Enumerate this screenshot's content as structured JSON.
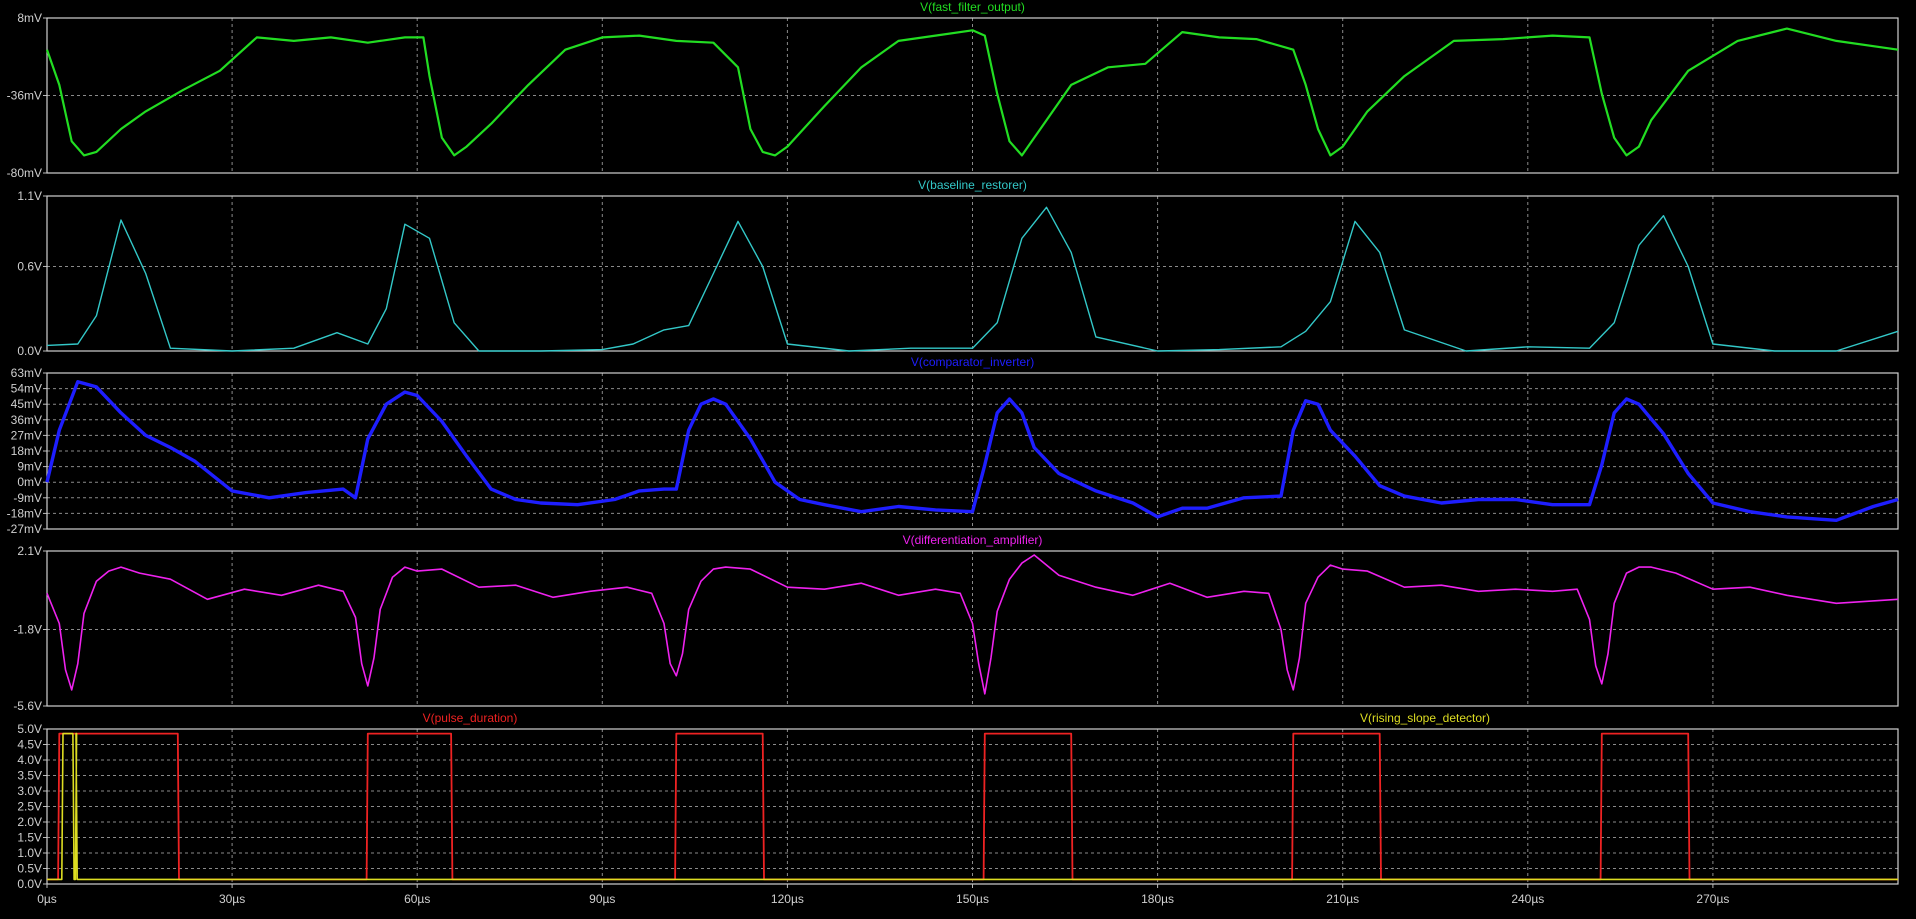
{
  "chart_data": {
    "type": "line",
    "x_axis": {
      "range": [
        0,
        300
      ],
      "ticks": [
        0,
        30,
        60,
        90,
        120,
        150,
        180,
        210,
        240,
        270
      ],
      "tick_labels": [
        "0µs",
        "30µs",
        "60µs",
        "90µs",
        "120µs",
        "150µs",
        "180µs",
        "210µs",
        "240µs",
        "270µs"
      ],
      "grid": true
    },
    "panes": [
      {
        "title": "V(fast_filter_output)",
        "ylim": [
          -80,
          8
        ],
        "ticks": [
          8,
          -36,
          -80
        ],
        "tick_labels": [
          "8mV",
          "-36mV",
          "-80mV"
        ],
        "series": [
          {
            "name": "V(fast_filter_output)",
            "color": "#22dd22",
            "width": 2.2,
            "x": [
              0,
              2,
              4,
              6,
              8,
              12,
              16,
              22,
              28,
              34,
              40,
              46,
              52,
              58,
              61,
              62,
              64,
              66,
              68,
              72,
              78,
              84,
              90,
              96,
              102,
              108,
              112,
              114,
              116,
              118,
              120,
              126,
              132,
              138,
              144,
              150,
              152,
              154,
              156,
              158,
              160,
              166,
              172,
              178,
              184,
              190,
              196,
              202,
              204,
              206,
              208,
              210,
              214,
              220,
              228,
              236,
              244,
              250,
              252,
              254,
              256,
              258,
              260,
              266,
              274,
              282,
              290,
              300
            ],
            "y": [
              -10,
              -30,
              -62,
              -70,
              -68,
              -55,
              -45,
              -33,
              -22,
              -3,
              -5,
              -3,
              -6,
              -3,
              -3,
              -25,
              -60,
              -70,
              -65,
              -52,
              -30,
              -10,
              -3,
              -2,
              -5,
              -6,
              -20,
              -55,
              -68,
              -70,
              -65,
              -42,
              -20,
              -5,
              -2,
              1,
              -2,
              -35,
              -62,
              -70,
              -60,
              -30,
              -20,
              -18,
              0,
              -3,
              -4,
              -10,
              -30,
              -55,
              -70,
              -65,
              -45,
              -25,
              -5,
              -4,
              -2,
              -3,
              -35,
              -60,
              -70,
              -65,
              -50,
              -22,
              -5,
              2,
              -5,
              -10
            ]
          }
        ]
      },
      {
        "title": "V(baseline_restorer)",
        "ylim": [
          0,
          1.1
        ],
        "ticks": [
          1.1,
          0.6,
          0.0
        ],
        "tick_labels": [
          "1.1V",
          "0.6V",
          "0.0V"
        ],
        "series": [
          {
            "name": "V(baseline_restorer)",
            "color": "#33c8c8",
            "width": 1.4,
            "x": [
              0,
              5,
              8,
              12,
              16,
              20,
              30,
              40,
              47,
              52,
              55,
              58,
              62,
              66,
              70,
              80,
              90,
              95,
              100,
              104,
              108,
              112,
              116,
              120,
              130,
              140,
              150,
              154,
              158,
              162,
              166,
              170,
              180,
              190,
              200,
              204,
              208,
              212,
              216,
              220,
              230,
              240,
              250,
              254,
              258,
              262,
              266,
              270,
              280,
              290,
              300
            ],
            "y": [
              0.04,
              0.05,
              0.25,
              0.93,
              0.55,
              0.02,
              0,
              0.02,
              0.13,
              0.05,
              0.3,
              0.9,
              0.8,
              0.2,
              0,
              0,
              0.01,
              0.05,
              0.15,
              0.18,
              0.55,
              0.92,
              0.6,
              0.05,
              0,
              0.02,
              0.02,
              0.2,
              0.8,
              1.02,
              0.7,
              0.1,
              0,
              0.01,
              0.03,
              0.14,
              0.35,
              0.92,
              0.7,
              0.15,
              0,
              0.03,
              0.02,
              0.2,
              0.75,
              0.96,
              0.6,
              0.05,
              0,
              0,
              0.14
            ]
          }
        ]
      },
      {
        "title": "V(comparator_inverter)",
        "ylim": [
          -27,
          63
        ],
        "ticks": [
          63,
          54,
          45,
          36,
          27,
          18,
          9,
          0,
          -9,
          -18,
          -27
        ],
        "tick_labels": [
          "63mV",
          "54mV",
          "45mV",
          "36mV",
          "27mV",
          "18mV",
          "9mV",
          "0mV",
          "-9mV",
          "-18mV",
          "-27mV"
        ],
        "series": [
          {
            "name": "V(comparator_inverter)",
            "color": "#1e1eff",
            "width": 3.4,
            "x": [
              0,
              2,
              5,
              8,
              12,
              16,
              20,
              24,
              30,
              36,
              42,
              48,
              50,
              52,
              55,
              58,
              60,
              64,
              68,
              72,
              76,
              80,
              86,
              92,
              96,
              100,
              102,
              104,
              106,
              108,
              110,
              114,
              118,
              122,
              126,
              132,
              138,
              144,
              150,
              152,
              154,
              156,
              158,
              160,
              164,
              170,
              176,
              180,
              184,
              188,
              194,
              200,
              202,
              204,
              206,
              208,
              212,
              216,
              220,
              226,
              232,
              238,
              244,
              250,
              252,
              254,
              256,
              258,
              262,
              266,
              270,
              276,
              282,
              290,
              296,
              300
            ],
            "y": [
              0,
              30,
              58,
              55,
              40,
              27,
              20,
              12,
              -5,
              -9,
              -6,
              -4,
              -9,
              25,
              45,
              52,
              50,
              35,
              15,
              -4,
              -10,
              -12,
              -13,
              -10,
              -5,
              -4,
              -4,
              30,
              45,
              48,
              45,
              25,
              0,
              -10,
              -13,
              -17,
              -14,
              -16,
              -17,
              10,
              40,
              48,
              40,
              20,
              5,
              -5,
              -12,
              -20,
              -15,
              -15,
              -9,
              -8,
              30,
              47,
              45,
              30,
              15,
              -2,
              -8,
              -12,
              -10,
              -10,
              -13,
              -13,
              10,
              40,
              48,
              45,
              28,
              5,
              -12,
              -17,
              -20,
              -22,
              -14,
              -10
            ]
          }
        ]
      },
      {
        "title": "V(differentiation_amplifier)",
        "ylim": [
          -5.6,
          2.1
        ],
        "ticks": [
          2.1,
          -1.8,
          -5.6
        ],
        "tick_labels": [
          "2.1V",
          "-1.8V",
          "-5.6V"
        ],
        "series": [
          {
            "name": "V(differentiation_amplifier)",
            "color": "#ee22ee",
            "width": 1.6,
            "x": [
              0,
              2,
              3,
              4,
              5,
              6,
              8,
              10,
              12,
              15,
              20,
              26,
              32,
              38,
              44,
              48,
              50,
              51,
              52,
              53,
              54,
              56,
              58,
              60,
              64,
              70,
              76,
              82,
              88,
              94,
              98,
              100,
              101,
              102,
              103,
              104,
              106,
              108,
              110,
              114,
              120,
              126,
              132,
              138,
              144,
              148,
              150,
              151,
              152,
              153,
              154,
              156,
              158,
              160,
              164,
              170,
              176,
              182,
              188,
              194,
              198,
              200,
              201,
              202,
              203,
              204,
              206,
              208,
              210,
              214,
              220,
              226,
              232,
              238,
              244,
              248,
              250,
              251,
              252,
              253,
              254,
              256,
              258,
              260,
              264,
              270,
              276,
              282,
              290,
              300
            ],
            "y": [
              0,
              -1.5,
              -3.8,
              -4.8,
              -3.5,
              -1,
              0.6,
              1.1,
              1.3,
              1.0,
              0.7,
              -0.3,
              0.2,
              -0.1,
              0.4,
              0.1,
              -1.2,
              -3.5,
              -4.6,
              -3.2,
              -0.8,
              0.8,
              1.3,
              1.1,
              1.2,
              0.3,
              0.4,
              -0.2,
              0.1,
              0.3,
              0,
              -1.5,
              -3.5,
              -4.1,
              -3,
              -0.8,
              0.6,
              1.2,
              1.3,
              1.2,
              0.3,
              0.2,
              0.5,
              -0.1,
              0.2,
              0,
              -1.5,
              -3.5,
              -5.0,
              -3.2,
              -0.9,
              0.7,
              1.5,
              1.9,
              0.9,
              0.3,
              -0.1,
              0.5,
              -0.2,
              0.1,
              0,
              -1.8,
              -3.8,
              -4.8,
              -3.2,
              -0.5,
              0.8,
              1.4,
              1.2,
              1.1,
              0.3,
              0.4,
              0.1,
              0.2,
              0.1,
              0.2,
              -1.3,
              -3.6,
              -4.5,
              -3,
              -0.5,
              1.0,
              1.3,
              1.3,
              1.0,
              0.2,
              0.3,
              -0.1,
              -0.5,
              -0.3
            ]
          }
        ]
      },
      {
        "title": "",
        "ylim": [
          0,
          5
        ],
        "ticks": [
          5.0,
          4.5,
          4.0,
          3.5,
          3.0,
          2.5,
          2.0,
          1.5,
          1.0,
          0.5,
          0.0
        ],
        "tick_labels": [
          "5.0V",
          "4.5V",
          "4.0V",
          "3.5V",
          "3.0V",
          "2.5V",
          "2.0V",
          "1.5V",
          "1.0V",
          "0.5V",
          "0.0V"
        ],
        "series_labels": [
          "V(pulse_duration)",
          "V(rising_slope_detector)"
        ],
        "series": [
          {
            "name": "V(pulse_duration)",
            "color": "#ee2222",
            "width": 1.8,
            "x": [
              0,
              1.8,
              2,
              21.2,
              21.4,
              51.8,
              52,
              65.5,
              65.7,
              101.8,
              102,
              116,
              116.2,
              151.8,
              152,
              166,
              166.2,
              201.8,
              202,
              216,
              216.2,
              251.8,
              252,
              266,
              266.2,
              300
            ],
            "y": [
              0.15,
              0.15,
              4.85,
              4.85,
              0.15,
              0.15,
              4.85,
              4.85,
              0.15,
              0.15,
              4.85,
              4.85,
              0.15,
              0.15,
              4.85,
              4.85,
              0.15,
              0.15,
              4.85,
              4.85,
              0.15,
              0.15,
              4.85,
              4.85,
              0.15,
              0.15
            ]
          },
          {
            "name": "V(rising_slope_detector)",
            "color": "#dddd22",
            "width": 1.6,
            "x": [
              0,
              2.4,
              2.6,
              4.2,
              4.4,
              4.6,
              4.8,
              4.7,
              4.9,
              300
            ],
            "y": [
              0.15,
              0.15,
              4.85,
              4.85,
              0.15,
              0.15,
              4.85,
              4.85,
              0.15,
              0.15
            ]
          }
        ]
      }
    ]
  }
}
